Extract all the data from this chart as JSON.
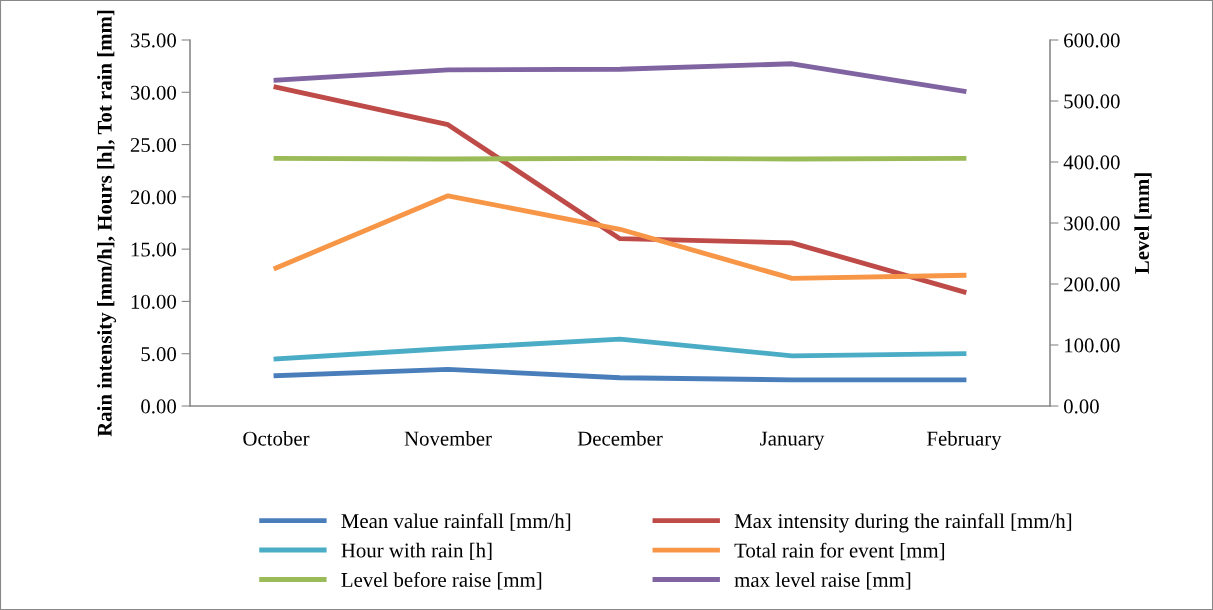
{
  "chart_data": {
    "type": "line",
    "categories": [
      "October",
      "November",
      "December",
      "January",
      "February"
    ],
    "ylabel": "Rain intensity [mm/h], Hours [h], Tot rain [mm]",
    "y2label": "Level [mm]",
    "ylim": [
      0,
      35
    ],
    "yticks": [
      {
        "value": 0,
        "label": "0.00"
      },
      {
        "value": 5,
        "label": "5.00"
      },
      {
        "value": 10,
        "label": "10.00"
      },
      {
        "value": 15,
        "label": "15.00"
      },
      {
        "value": 20,
        "label": "20.00"
      },
      {
        "value": 25,
        "label": "25.00"
      },
      {
        "value": 30,
        "label": "30.00"
      },
      {
        "value": 35,
        "label": "35.00"
      }
    ],
    "y2lim": [
      0,
      600
    ],
    "y2ticks": [
      {
        "value": 0,
        "label": "0.00"
      },
      {
        "value": 100,
        "label": "100.00"
      },
      {
        "value": 200,
        "label": "200.00"
      },
      {
        "value": 300,
        "label": "300.00"
      },
      {
        "value": 400,
        "label": "400.00"
      },
      {
        "value": 500,
        "label": "500.00"
      },
      {
        "value": 600,
        "label": "600.00"
      }
    ],
    "legend": "bottom",
    "grid": false,
    "marker": "none",
    "line_style": "solid",
    "series": [
      {
        "name": "Mean value rainfall [mm/h]",
        "color": "#4a7ebb",
        "values": [
          2.9,
          3.5,
          2.7,
          2.5,
          2.5
        ]
      },
      {
        "name": "Max intensity during the rainfall [mm/h]",
        "color": "#be4b48",
        "values": [
          30.5,
          26.9,
          16.0,
          15.6,
          10.9
        ]
      },
      {
        "name": "Hour with rain [h]",
        "color": "#4bacc6",
        "values": [
          4.5,
          5.5,
          6.4,
          4.8,
          5.0
        ]
      },
      {
        "name": "Total rain for event [mm]",
        "color": "#f79646",
        "values": [
          13.2,
          20.1,
          16.9,
          12.2,
          12.5
        ]
      },
      {
        "name": "Level before raise [mm]",
        "color": "#9bbb59",
        "axis": "y2",
        "values": [
          406,
          405,
          406,
          405,
          406
        ]
      },
      {
        "name": "max level raise [mm]",
        "color": "#8064a2",
        "axis": "y2",
        "values": [
          534,
          551,
          552,
          561,
          516
        ]
      }
    ]
  }
}
